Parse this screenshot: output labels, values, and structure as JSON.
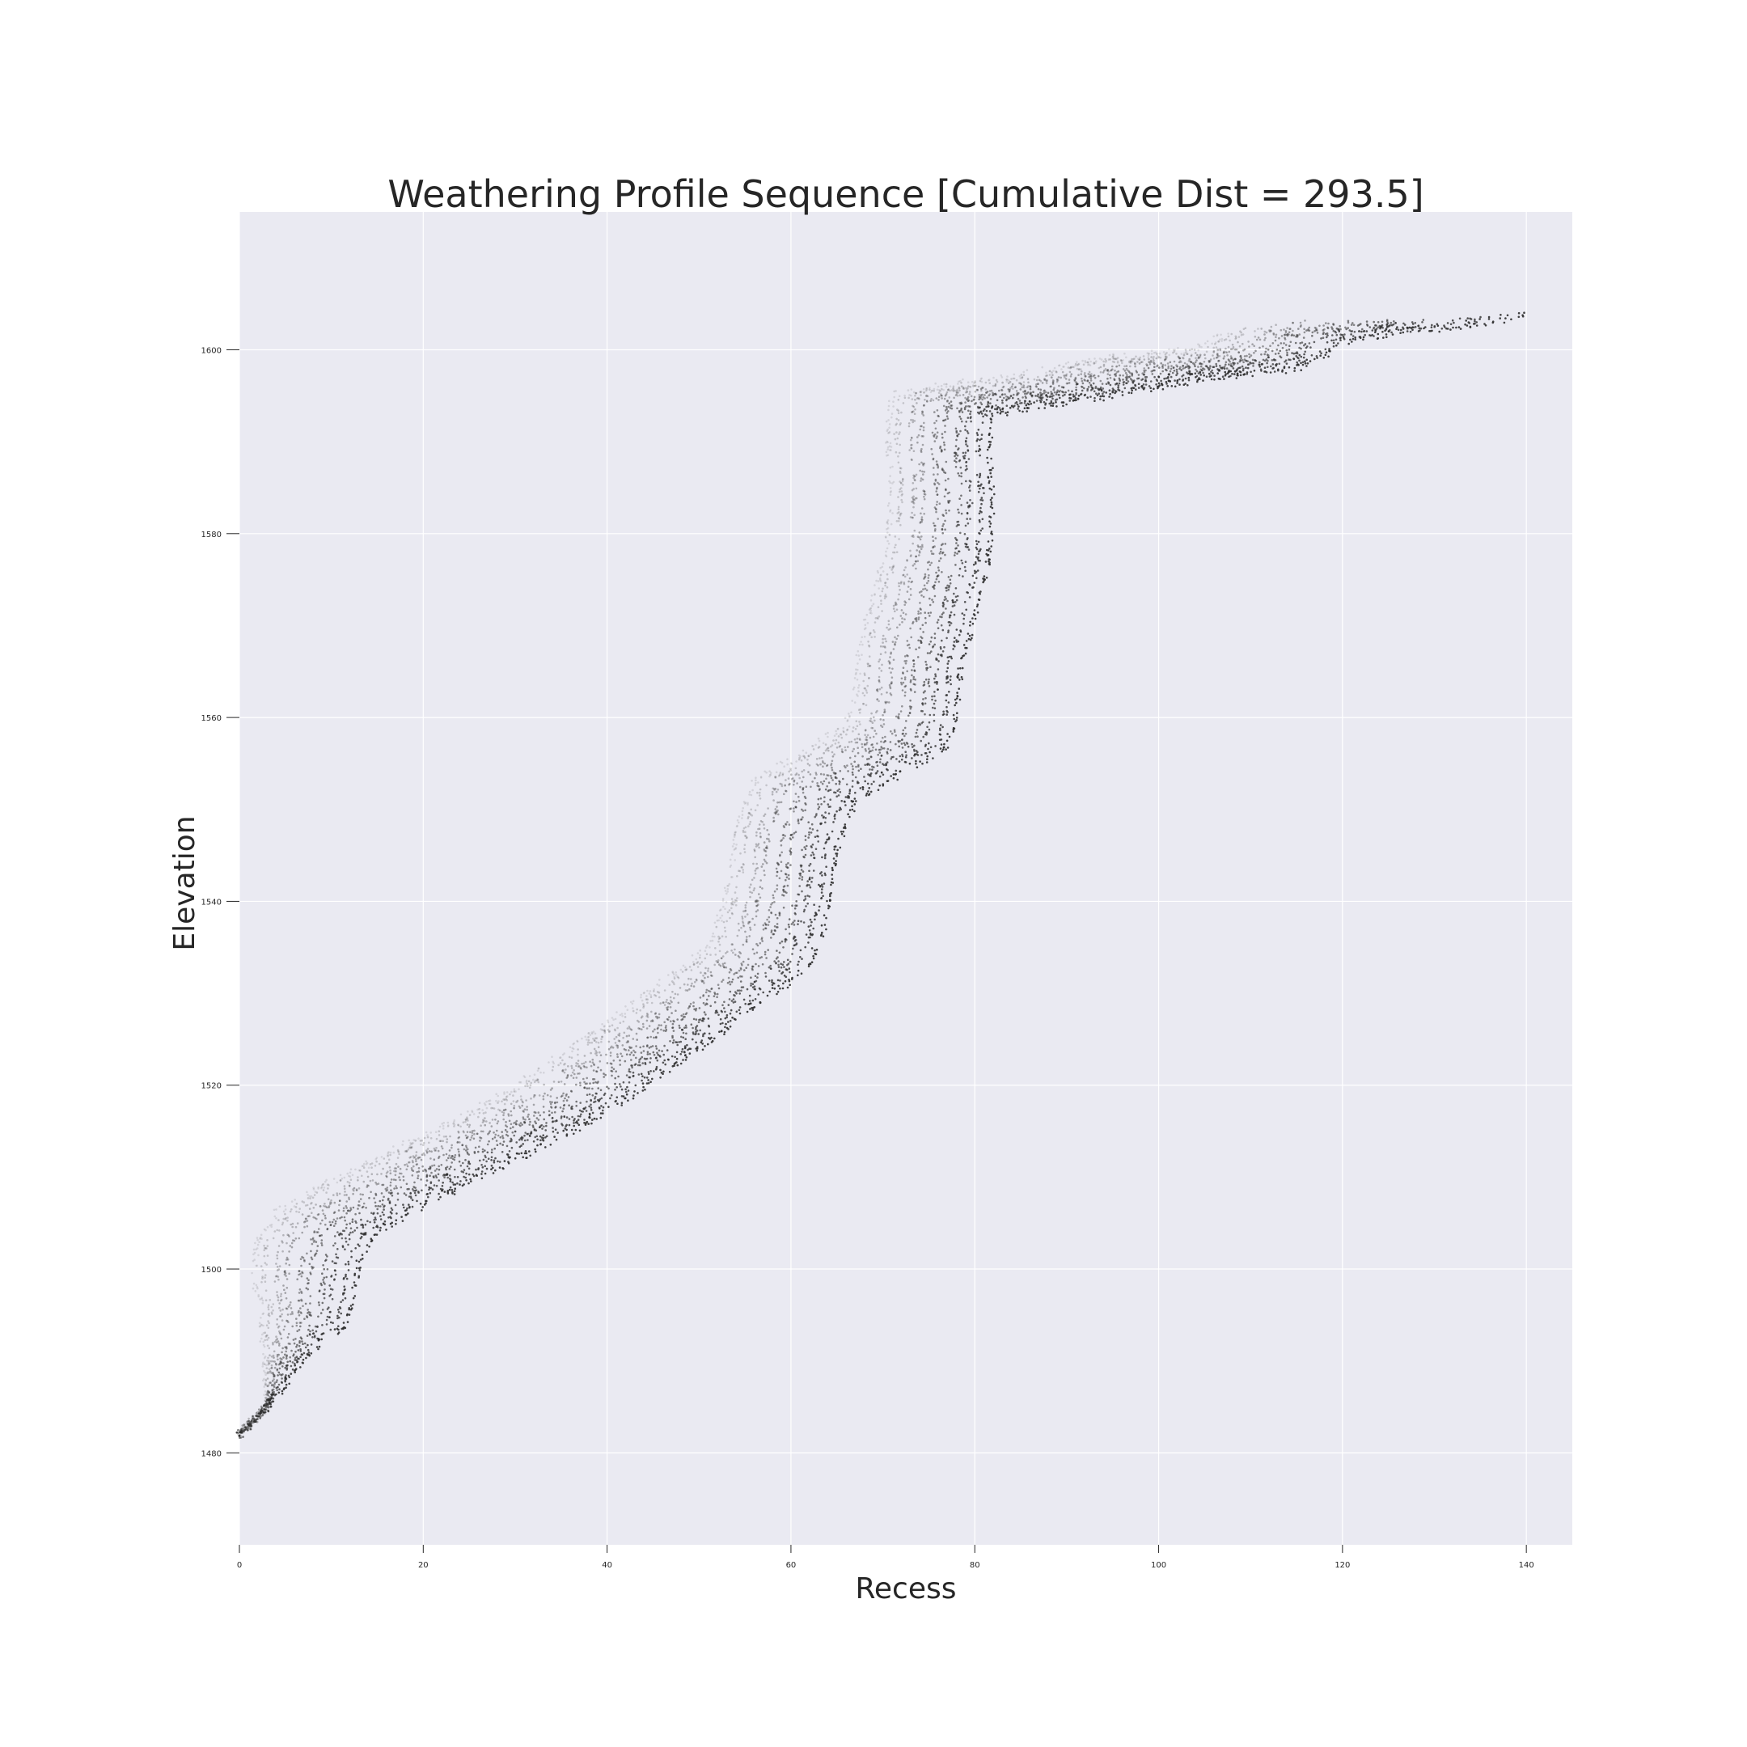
{
  "chart_data": {
    "type": "scatter",
    "title": "Weathering Profile Sequence [Cumulative Dist = 293.5]",
    "xlabel": "Recess",
    "ylabel": "Elevation",
    "xlim": [
      0,
      145
    ],
    "ylim": [
      1470,
      1615
    ],
    "xticks": [
      0,
      20,
      40,
      60,
      80,
      100,
      120,
      140
    ],
    "yticks": [
      1480,
      1500,
      1520,
      1540,
      1560,
      1580,
      1600
    ],
    "grid": true,
    "background": "#eaeaf2",
    "point_color": "#2e2e2e",
    "profile_count": 10,
    "base_profile": [
      [
        0,
        1482
      ],
      [
        3,
        1485
      ],
      [
        6,
        1489
      ],
      [
        9,
        1492
      ],
      [
        11.5,
        1494
      ],
      [
        12.5,
        1497
      ],
      [
        13,
        1501
      ],
      [
        15,
        1504
      ],
      [
        20,
        1507
      ],
      [
        30,
        1512
      ],
      [
        40,
        1517
      ],
      [
        50,
        1524
      ],
      [
        58,
        1530
      ],
      [
        62,
        1533
      ],
      [
        63.5,
        1537
      ],
      [
        64.5,
        1541
      ],
      [
        65,
        1546
      ],
      [
        67,
        1551
      ],
      [
        72,
        1554
      ],
      [
        77,
        1557
      ],
      [
        78,
        1560
      ],
      [
        78.5,
        1566
      ],
      [
        80,
        1571
      ],
      [
        81.5,
        1577
      ],
      [
        82,
        1583
      ],
      [
        81.5,
        1589
      ],
      [
        82,
        1593
      ],
      [
        87,
        1594
      ],
      [
        95,
        1595
      ],
      [
        105,
        1597
      ],
      [
        115,
        1598
      ],
      [
        121,
        1601
      ],
      [
        126,
        1602
      ],
      [
        132,
        1602.5
      ],
      [
        138,
        1603.5
      ],
      [
        140,
        1604
      ]
    ],
    "profiles": [
      {
        "x_shift": -11,
        "y_shift": 2.0,
        "x_end": 108
      },
      {
        "x_shift": -10,
        "y_shift": 1.8,
        "x_end": 111
      },
      {
        "x_shift": -8.5,
        "y_shift": 1.5,
        "x_end": 113
      },
      {
        "x_shift": -7.5,
        "y_shift": 1.3,
        "x_end": 116
      },
      {
        "x_shift": -6,
        "y_shift": 1.0,
        "x_end": 119
      },
      {
        "x_shift": -5,
        "y_shift": 0.8,
        "x_end": 122
      },
      {
        "x_shift": -3.5,
        "y_shift": 0.6,
        "x_end": 126
      },
      {
        "x_shift": -2.5,
        "y_shift": 0.4,
        "x_end": 130
      },
      {
        "x_shift": -1.2,
        "y_shift": 0.2,
        "x_end": 135
      },
      {
        "x_shift": 0,
        "y_shift": 0,
        "x_end": 141
      }
    ]
  }
}
